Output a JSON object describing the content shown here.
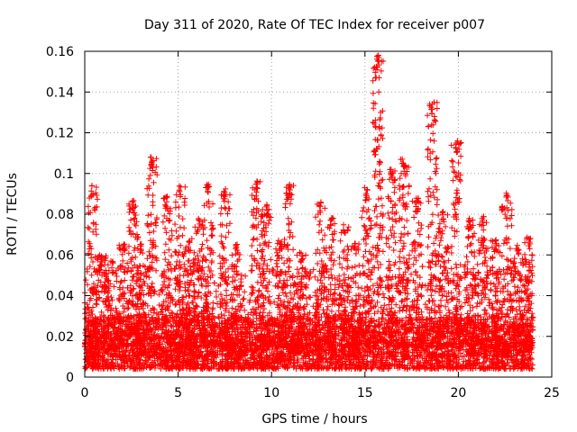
{
  "chart_data": {
    "type": "scatter",
    "title": "Day 311 of 2020, Rate Of TEC Index for receiver p007",
    "xlabel": "GPS time / hours",
    "ylabel": "ROTI / TECUs",
    "xlim": [
      0,
      25
    ],
    "ylim": [
      0,
      0.16
    ],
    "x_ticks": [
      "0",
      "5",
      "10",
      "15",
      "20",
      "25"
    ],
    "y_ticks": [
      "0",
      "0.02",
      "0.04",
      "0.06",
      "0.08",
      "0.1",
      "0.12",
      "0.14",
      "0.16"
    ],
    "grid": true,
    "marker": "plus",
    "series_color": "#ff0000",
    "x_extent": [
      0,
      24
    ],
    "baseline_band": [
      0.004,
      0.02
    ],
    "bursts": [
      {
        "x": 0.4,
        "peak": 0.094
      },
      {
        "x": 0.9,
        "peak": 0.06
      },
      {
        "x": 1.5,
        "peak": 0.057
      },
      {
        "x": 2.1,
        "peak": 0.066
      },
      {
        "x": 2.6,
        "peak": 0.087
      },
      {
        "x": 3.0,
        "peak": 0.066
      },
      {
        "x": 3.6,
        "peak": 0.108
      },
      {
        "x": 4.4,
        "peak": 0.089
      },
      {
        "x": 5.1,
        "peak": 0.094
      },
      {
        "x": 5.6,
        "peak": 0.068
      },
      {
        "x": 6.1,
        "peak": 0.078
      },
      {
        "x": 6.6,
        "peak": 0.095
      },
      {
        "x": 7.5,
        "peak": 0.093
      },
      {
        "x": 8.1,
        "peak": 0.066
      },
      {
        "x": 9.2,
        "peak": 0.097
      },
      {
        "x": 9.7,
        "peak": 0.085
      },
      {
        "x": 10.5,
        "peak": 0.068
      },
      {
        "x": 11.0,
        "peak": 0.095
      },
      {
        "x": 11.6,
        "peak": 0.062
      },
      {
        "x": 12.6,
        "peak": 0.086
      },
      {
        "x": 13.2,
        "peak": 0.079
      },
      {
        "x": 13.9,
        "peak": 0.075
      },
      {
        "x": 14.5,
        "peak": 0.066
      },
      {
        "x": 15.1,
        "peak": 0.093
      },
      {
        "x": 15.7,
        "peak": 0.158
      },
      {
        "x": 16.4,
        "peak": 0.102
      },
      {
        "x": 17.1,
        "peak": 0.107
      },
      {
        "x": 17.8,
        "peak": 0.088
      },
      {
        "x": 18.6,
        "peak": 0.135
      },
      {
        "x": 19.2,
        "peak": 0.082
      },
      {
        "x": 19.9,
        "peak": 0.116
      },
      {
        "x": 20.6,
        "peak": 0.078
      },
      {
        "x": 21.3,
        "peak": 0.079
      },
      {
        "x": 22.0,
        "peak": 0.068
      },
      {
        "x": 22.6,
        "peak": 0.092
      },
      {
        "x": 23.2,
        "peak": 0.066
      },
      {
        "x": 23.8,
        "peak": 0.07
      }
    ],
    "outliers": [
      {
        "x": 15.72,
        "y": 0.158
      },
      {
        "x": 15.74,
        "y": 0.157
      },
      {
        "x": 15.76,
        "y": 0.147
      },
      {
        "x": 15.74,
        "y": 0.14
      },
      {
        "x": 15.76,
        "y": 0.123
      },
      {
        "x": 15.78,
        "y": 0.122
      },
      {
        "x": 18.7,
        "y": 0.135
      },
      {
        "x": 18.72,
        "y": 0.128
      },
      {
        "x": 18.74,
        "y": 0.126
      },
      {
        "x": 18.7,
        "y": 0.116
      },
      {
        "x": 18.76,
        "y": 0.101
      },
      {
        "x": 18.8,
        "y": 0.1
      },
      {
        "x": 19.95,
        "y": 0.116
      },
      {
        "x": 16.4,
        "y": 0.102
      },
      {
        "x": 3.55,
        "y": 0.108
      },
      {
        "x": 3.6,
        "y": 0.106
      },
      {
        "x": 3.65,
        "y": 0.103
      },
      {
        "x": 17.0,
        "y": 0.107
      },
      {
        "x": 17.05,
        "y": 0.105
      },
      {
        "x": 17.1,
        "y": 0.104
      }
    ]
  }
}
